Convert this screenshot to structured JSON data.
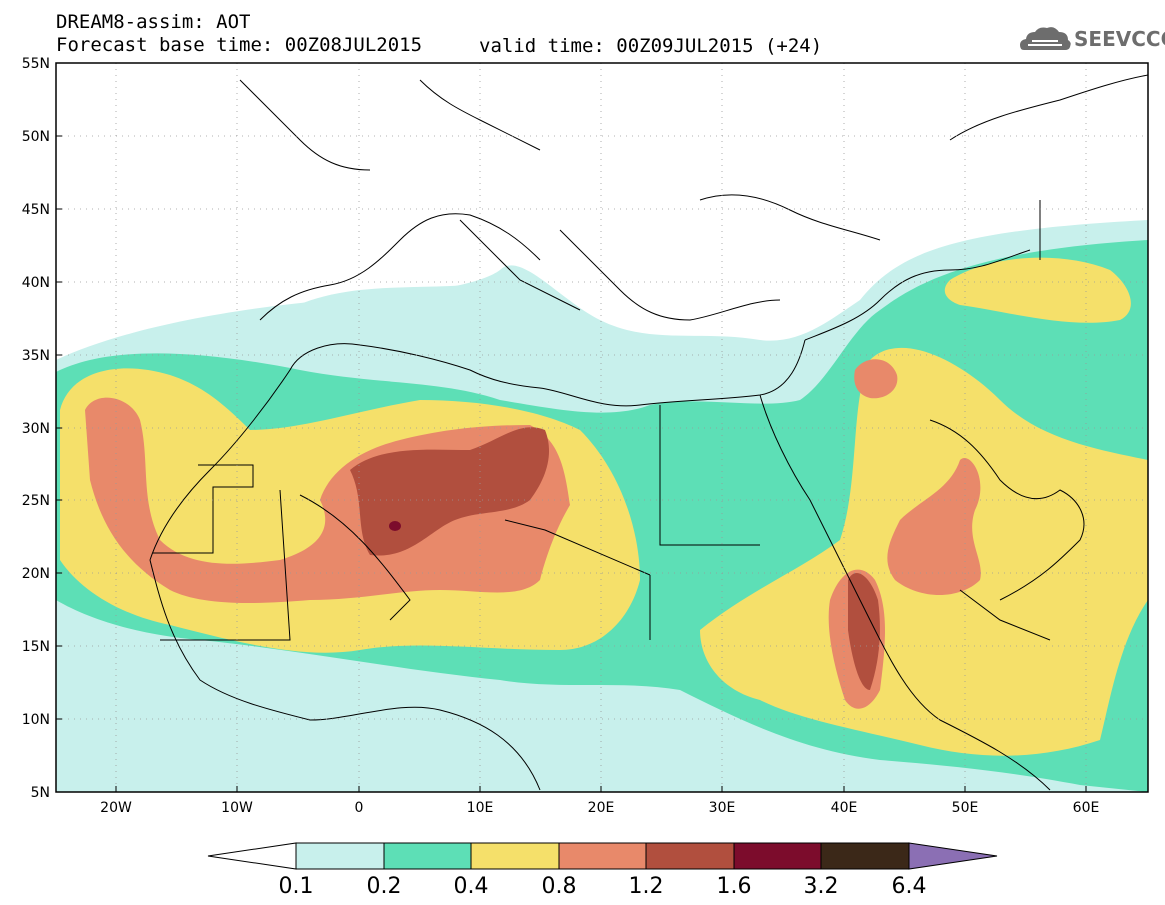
{
  "header": {
    "line1": "DREAM8-assim: AOT",
    "line2": "Forecast base time: 00Z08JUL2015",
    "valid": "valid time: 00Z09JUL2015 (+24)"
  },
  "logo": {
    "text": "SEEVCCC",
    "icon": "cloud-icon"
  },
  "axes": {
    "lat_labels": [
      "55N",
      "50N",
      "45N",
      "40N",
      "35N",
      "30N",
      "25N",
      "20N",
      "15N",
      "10N",
      "5N"
    ],
    "lon_labels": [
      "20W",
      "10W",
      "0",
      "10E",
      "20E",
      "30E",
      "40E",
      "50E",
      "60E"
    ]
  },
  "colorbar": {
    "labels": [
      "0.1",
      "0.2",
      "0.4",
      "0.8",
      "1.2",
      "1.6",
      "3.2",
      "6.4"
    ],
    "colors": [
      "#ffffff",
      "#c8f0ec",
      "#5ddfb6",
      "#f5e06a",
      "#e8896a",
      "#b14f3e",
      "#7c0c2c",
      "#3b2818",
      "#8b6fb4"
    ]
  },
  "map": {
    "extent": "25W-65E, 5N-55N",
    "field": "AOT"
  }
}
